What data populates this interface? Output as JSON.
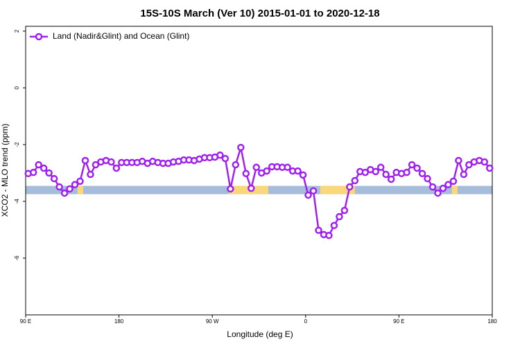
{
  "chart_data": {
    "type": "line",
    "title": "15S-10S March (Ver 10)   2015-01-01 to 2020-12-18",
    "x_label": "Longitude (deg E)",
    "y_label": "XCO2 - MLO trend (ppm)",
    "xlim": [
      90,
      540
    ],
    "ylim": [
      -8,
      2.17
    ],
    "xticks": [
      {
        "value": 90,
        "label": "90 E"
      },
      180,
      {
        "value": 270,
        "label": "90 W"
      },
      {
        "value": 360,
        "label": "0"
      },
      {
        "value": 450,
        "label": "90 E"
      },
      {
        "value": 540,
        "label": "180"
      }
    ],
    "yticks": [
      -6,
      -4,
      -2,
      0,
      2
    ],
    "legend": "top-left",
    "surface_band": {
      "y": -3.6,
      "ocean_color": "#a5bddb",
      "land_color": "#f9d77a",
      "land": [
        [
          140,
          145.5
        ],
        [
          286,
          324
        ],
        [
          374,
          407.5
        ],
        [
          501,
          506.5
        ]
      ]
    },
    "x": [
      92.5,
      97.5,
      102.5,
      107.5,
      112.5,
      117.5,
      122.5,
      127.5,
      132.5,
      137.5,
      142.5,
      147.5,
      152.5,
      157.5,
      162.5,
      167.5,
      172.5,
      177.5,
      182.5,
      187.5,
      192.5,
      197.5,
      202.5,
      207.5,
      212.5,
      217.5,
      222.5,
      227.5,
      232.5,
      237.5,
      242.5,
      247.5,
      252.5,
      257.5,
      262.5,
      267.5,
      272.5,
      277.5,
      282.5,
      287.5,
      292.5,
      297.5,
      302.5,
      307.5,
      312.5,
      317.5,
      322.5,
      327.5,
      332.5,
      337.5,
      342.5,
      347.5,
      352.5,
      357.5,
      362.5,
      367.5,
      372.5,
      377.5,
      382.5,
      387.5,
      392.5,
      397.5,
      402.5,
      407.5,
      412.5,
      417.5,
      422.5,
      427.5,
      432.5,
      437.5,
      442.5,
      447.5,
      452.5,
      457.5,
      462.5,
      467.5,
      472.5,
      477.5,
      482.5,
      487.5,
      492.5,
      497.5,
      502.5,
      507.5,
      512.5,
      517.5,
      522.5,
      527.5,
      532.5,
      537.5
    ],
    "series": [
      {
        "name": "Land (Nadir&Glint) and Ocean (Glint)",
        "color": "#a020f0",
        "values": [
          -3.02,
          -2.98,
          -2.71,
          -2.83,
          -3.0,
          -3.2,
          -3.49,
          -3.71,
          -3.56,
          -3.41,
          -3.29,
          -2.56,
          -3.05,
          -2.71,
          -2.61,
          -2.56,
          -2.61,
          -2.83,
          -2.63,
          -2.63,
          -2.63,
          -2.63,
          -2.59,
          -2.66,
          -2.59,
          -2.63,
          -2.66,
          -2.66,
          -2.61,
          -2.59,
          -2.54,
          -2.54,
          -2.56,
          -2.51,
          -2.46,
          -2.46,
          -2.44,
          -2.37,
          -2.49,
          -3.56,
          -2.71,
          -2.1,
          -3.02,
          -3.54,
          -2.8,
          -3.0,
          -2.93,
          -2.78,
          -2.78,
          -2.8,
          -2.8,
          -2.93,
          -2.93,
          -3.07,
          -3.78,
          -3.63,
          -5.02,
          -5.17,
          -5.2,
          -4.85,
          -4.54,
          -4.32,
          -3.49,
          -3.27,
          -2.95,
          -2.98,
          -2.88,
          -2.95,
          -2.8,
          -3.05,
          -3.22,
          -2.98,
          -3.02,
          -2.98,
          -2.71,
          -2.83,
          -3.02,
          -3.2,
          -3.49,
          -3.71,
          -3.54,
          -3.41,
          -3.29,
          -2.56,
          -3.05,
          -2.71,
          -2.61,
          -2.56,
          -2.61,
          -2.83
        ]
      }
    ]
  }
}
